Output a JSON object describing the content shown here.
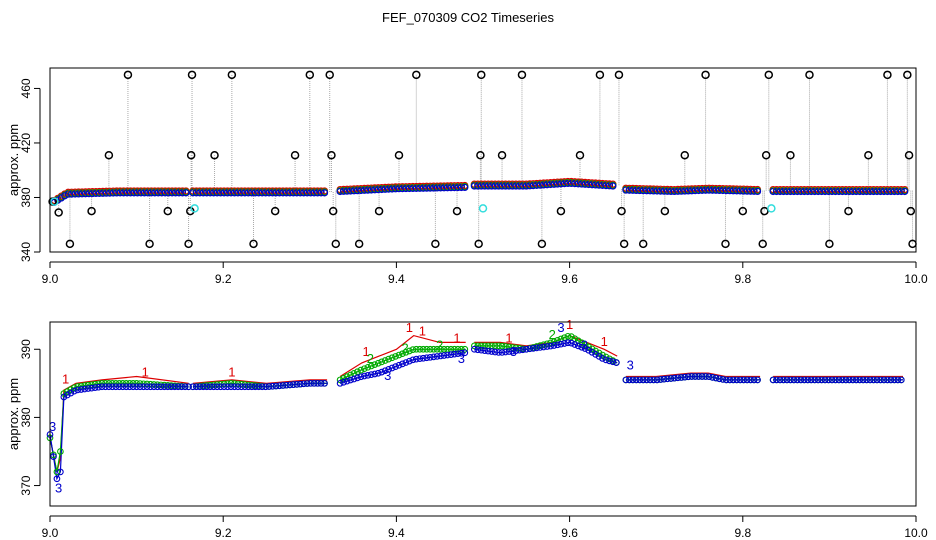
{
  "title": "FEF_070309  CO2 Timeseries",
  "colors": {
    "frame": "#000000",
    "outlier": "#000000",
    "spike_line": "#aaaaaa",
    "series_red": "#dd0000",
    "series_green": "#00aa00",
    "series_blue": "#0000cc",
    "cyan": "#33dddd"
  },
  "chart_data": [
    {
      "type": "scatter",
      "title": "",
      "xlabel": "",
      "ylabel": "approx. ppm",
      "xlim": [
        9.0,
        10.0
      ],
      "ylim": [
        340,
        475
      ],
      "x_ticks": [
        "9.0",
        "9.2",
        "9.4",
        "9.6",
        "9.8",
        "10.0"
      ],
      "y_ticks": [
        "340",
        "380",
        "420",
        "460"
      ],
      "grid": false,
      "baseline_segments": [
        {
          "x": [
            9.005,
            9.02,
            9.08,
            9.16
          ],
          "y": [
            377,
            383,
            384,
            384
          ]
        },
        {
          "x": [
            9.165,
            9.25,
            9.32
          ],
          "y": [
            384,
            384,
            384
          ]
        },
        {
          "x": [
            9.335,
            9.4,
            9.48
          ],
          "y": [
            385,
            387,
            388
          ]
        },
        {
          "x": [
            9.49,
            9.55,
            9.6,
            9.65
          ],
          "y": [
            389,
            389,
            391,
            389
          ]
        },
        {
          "x": [
            9.665,
            9.72,
            9.76,
            9.82
          ],
          "y": [
            386,
            385,
            386,
            385
          ]
        },
        {
          "x": [
            9.835,
            9.9,
            9.99
          ],
          "y": [
            385,
            385,
            385
          ]
        }
      ],
      "outliers": [
        {
          "x": 9.003,
          "y": 377
        },
        {
          "x": 9.01,
          "y": 369
        },
        {
          "x": 9.023,
          "y": 346
        },
        {
          "x": 9.048,
          "y": 370
        },
        {
          "x": 9.068,
          "y": 411
        },
        {
          "x": 9.09,
          "y": 470
        },
        {
          "x": 9.115,
          "y": 346
        },
        {
          "x": 9.136,
          "y": 370
        },
        {
          "x": 9.16,
          "y": 346
        },
        {
          "x": 9.162,
          "y": 370
        },
        {
          "x": 9.163,
          "y": 411
        },
        {
          "x": 9.164,
          "y": 470
        },
        {
          "x": 9.19,
          "y": 411
        },
        {
          "x": 9.21,
          "y": 470
        },
        {
          "x": 9.235,
          "y": 346
        },
        {
          "x": 9.26,
          "y": 370
        },
        {
          "x": 9.283,
          "y": 411
        },
        {
          "x": 9.3,
          "y": 470
        },
        {
          "x": 9.323,
          "y": 470
        },
        {
          "x": 9.325,
          "y": 411
        },
        {
          "x": 9.327,
          "y": 370
        },
        {
          "x": 9.33,
          "y": 346
        },
        {
          "x": 9.357,
          "y": 346
        },
        {
          "x": 9.38,
          "y": 370
        },
        {
          "x": 9.403,
          "y": 411
        },
        {
          "x": 9.423,
          "y": 470
        },
        {
          "x": 9.445,
          "y": 346
        },
        {
          "x": 9.47,
          "y": 370
        },
        {
          "x": 9.495,
          "y": 346
        },
        {
          "x": 9.497,
          "y": 411
        },
        {
          "x": 9.498,
          "y": 470
        },
        {
          "x": 9.522,
          "y": 411
        },
        {
          "x": 9.545,
          "y": 470
        },
        {
          "x": 9.568,
          "y": 346
        },
        {
          "x": 9.59,
          "y": 370
        },
        {
          "x": 9.612,
          "y": 411
        },
        {
          "x": 9.635,
          "y": 470
        },
        {
          "x": 9.657,
          "y": 470
        },
        {
          "x": 9.66,
          "y": 370
        },
        {
          "x": 9.663,
          "y": 346
        },
        {
          "x": 9.685,
          "y": 346
        },
        {
          "x": 9.71,
          "y": 370
        },
        {
          "x": 9.733,
          "y": 411
        },
        {
          "x": 9.757,
          "y": 470
        },
        {
          "x": 9.78,
          "y": 346
        },
        {
          "x": 9.8,
          "y": 370
        },
        {
          "x": 9.823,
          "y": 346
        },
        {
          "x": 9.825,
          "y": 370
        },
        {
          "x": 9.827,
          "y": 411
        },
        {
          "x": 9.83,
          "y": 470
        },
        {
          "x": 9.855,
          "y": 411
        },
        {
          "x": 9.877,
          "y": 470
        },
        {
          "x": 9.9,
          "y": 346
        },
        {
          "x": 9.922,
          "y": 370
        },
        {
          "x": 9.945,
          "y": 411
        },
        {
          "x": 9.967,
          "y": 470
        },
        {
          "x": 9.99,
          "y": 470
        },
        {
          "x": 9.992,
          "y": 411
        },
        {
          "x": 9.994,
          "y": 370
        },
        {
          "x": 9.996,
          "y": 346
        }
      ],
      "cyan_points": [
        {
          "x": 9.005,
          "y": 377
        },
        {
          "x": 9.167,
          "y": 372
        },
        {
          "x": 9.5,
          "y": 372
        },
        {
          "x": 9.833,
          "y": 372
        }
      ]
    },
    {
      "type": "line",
      "title": "",
      "xlabel": "",
      "ylabel": "approx. ppm",
      "xlim": [
        9.0,
        10.0
      ],
      "ylim": [
        367,
        394
      ],
      "x_ticks": [
        "9.0",
        "9.2",
        "9.4",
        "9.6",
        "9.8",
        "10.0"
      ],
      "y_ticks": [
        "370",
        "380",
        "390"
      ],
      "grid": false,
      "series": [
        {
          "segments": [
            {
              "x": [
                9.0,
                9.008,
                9.012,
                9.016,
                9.03,
                9.06,
                9.1,
                9.16
              ],
              "y": [
                377,
                372,
                374,
                384,
                385,
                385.5,
                386,
                385
              ]
            },
            {
              "x": [
                9.165,
                9.21,
                9.25,
                9.3,
                9.32
              ],
              "y": [
                385,
                385.5,
                385,
                385.5,
                385.5
              ]
            },
            {
              "x": [
                9.335,
                9.36,
                9.38,
                9.4,
                9.42,
                9.45,
                9.48
              ],
              "y": [
                386,
                388,
                389,
                390,
                392,
                391,
                391
              ]
            },
            {
              "x": [
                9.49,
                9.52,
                9.55,
                9.58,
                9.6,
                9.62,
                9.64,
                9.655
              ],
              "y": [
                391,
                391,
                390.5,
                391,
                392,
                391,
                390,
                389
              ]
            },
            {
              "x": [
                9.665,
                9.7,
                9.74,
                9.76,
                9.78,
                9.82
              ],
              "y": [
                386,
                386,
                386.5,
                386.5,
                386,
                386
              ]
            },
            {
              "x": [
                9.835,
                9.88,
                9.92,
                9.96,
                9.985
              ],
              "y": [
                386,
                386,
                386,
                386,
                386
              ]
            }
          ],
          "labels": [
            {
              "x": 9.018,
              "y": 385,
              "text": "1"
            },
            {
              "x": 9.11,
              "y": 386,
              "text": "1"
            },
            {
              "x": 9.21,
              "y": 386,
              "text": "1"
            },
            {
              "x": 9.365,
              "y": 389,
              "text": "1"
            },
            {
              "x": 9.415,
              "y": 392.5,
              "text": "1"
            },
            {
              "x": 9.43,
              "y": 392,
              "text": "1"
            },
            {
              "x": 9.47,
              "y": 391,
              "text": "1"
            },
            {
              "x": 9.53,
              "y": 391,
              "text": "1"
            },
            {
              "x": 9.6,
              "y": 393,
              "text": "1"
            },
            {
              "x": 9.64,
              "y": 390.5,
              "text": "1"
            }
          ]
        },
        {
          "segments": [
            {
              "x": [
                9.0,
                9.008,
                9.012,
                9.016,
                9.03,
                9.06,
                9.1,
                9.16
              ],
              "y": [
                377,
                372,
                375,
                383.5,
                384.5,
                385,
                385,
                384.5
              ]
            },
            {
              "x": [
                9.165,
                9.21,
                9.25,
                9.3,
                9.32
              ],
              "y": [
                384.5,
                385,
                384.5,
                385,
                385
              ]
            },
            {
              "x": [
                9.335,
                9.36,
                9.38,
                9.4,
                9.42,
                9.45,
                9.48
              ],
              "y": [
                385.5,
                387,
                388,
                389,
                390,
                390,
                390
              ]
            },
            {
              "x": [
                9.49,
                9.52,
                9.55,
                9.58,
                9.6,
                9.62,
                9.64,
                9.655
              ],
              "y": [
                390.5,
                390.5,
                390,
                391,
                392,
                390.5,
                389,
                388
              ]
            },
            {
              "x": [
                9.665,
                9.7,
                9.74,
                9.76,
                9.78,
                9.82
              ],
              "y": [
                385.5,
                385.5,
                386,
                386,
                385.5,
                385.5
              ]
            },
            {
              "x": [
                9.835,
                9.88,
                9.92,
                9.96,
                9.985
              ],
              "y": [
                385.5,
                385.5,
                385.5,
                385.5,
                385.5
              ]
            }
          ],
          "labels": [
            {
              "x": 9.37,
              "y": 388,
              "text": "2"
            },
            {
              "x": 9.41,
              "y": 389.5,
              "text": "2"
            },
            {
              "x": 9.45,
              "y": 390,
              "text": "2"
            },
            {
              "x": 9.58,
              "y": 391.5,
              "text": "2"
            }
          ]
        },
        {
          "segments": [
            {
              "x": [
                9.0,
                9.008,
                9.012,
                9.016,
                9.03,
                9.06,
                9.1,
                9.16
              ],
              "y": [
                377.5,
                371,
                372,
                383,
                384,
                384.5,
                384.5,
                384.5
              ]
            },
            {
              "x": [
                9.165,
                9.21,
                9.25,
                9.3,
                9.32
              ],
              "y": [
                384.5,
                384.5,
                384.5,
                385,
                385
              ]
            },
            {
              "x": [
                9.335,
                9.36,
                9.38,
                9.4,
                9.42,
                9.45,
                9.48
              ],
              "y": [
                385,
                386,
                386.5,
                387.5,
                388.5,
                389,
                389.5
              ]
            },
            {
              "x": [
                9.49,
                9.52,
                9.55,
                9.58,
                9.6,
                9.62,
                9.64,
                9.655
              ],
              "y": [
                390,
                389.5,
                390,
                390.5,
                391,
                390,
                388.5,
                388
              ]
            },
            {
              "x": [
                9.665,
                9.7,
                9.74,
                9.76,
                9.78,
                9.82
              ],
              "y": [
                385.5,
                385.5,
                386,
                386,
                385.5,
                385.5
              ]
            },
            {
              "x": [
                9.835,
                9.88,
                9.92,
                9.96,
                9.985
              ],
              "y": [
                385.5,
                385.5,
                385.5,
                385.5,
                385.5
              ]
            }
          ],
          "labels": [
            {
              "x": 9.003,
              "y": 378,
              "text": "3"
            },
            {
              "x": 9.01,
              "y": 369,
              "text": "3"
            },
            {
              "x": 9.39,
              "y": 385.5,
              "text": "3"
            },
            {
              "x": 9.475,
              "y": 388,
              "text": "3"
            },
            {
              "x": 9.535,
              "y": 389,
              "text": "3"
            },
            {
              "x": 9.59,
              "y": 392.5,
              "text": "3"
            },
            {
              "x": 9.617,
              "y": 390,
              "text": "3"
            },
            {
              "x": 9.67,
              "y": 387,
              "text": "3"
            }
          ]
        }
      ]
    }
  ]
}
